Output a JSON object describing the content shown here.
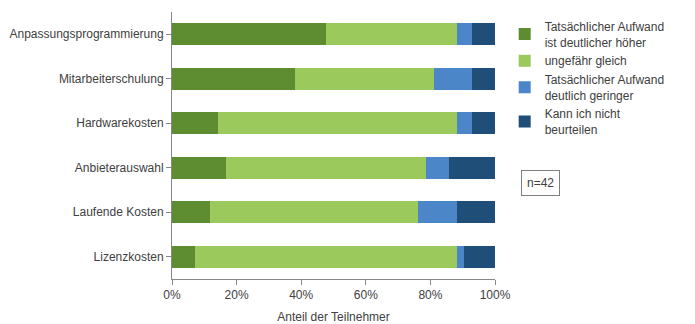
{
  "chart_data": {
    "type": "bar",
    "orientation": "horizontal",
    "stacked": true,
    "grid": false,
    "legend": "right",
    "x_label": "Anteil der Teilnehmer",
    "annotation": "n=42",
    "categories": [
      "Anpassungsprogrammierung",
      "Mitarbeiterschulung",
      "Hardwarekosten",
      "Anbieterauswahl",
      "Laufende Kosten",
      "Lizenzkosten"
    ],
    "series": [
      {
        "name": "Tatsächlicher Aufwand ist deutlicher höher",
        "color": "#5e8c31",
        "values": [
          47.6,
          38.1,
          14.3,
          16.7,
          11.9,
          7.1
        ]
      },
      {
        "name": "ungefähr gleich",
        "color": "#9bc95b",
        "values": [
          40.5,
          42.9,
          73.8,
          61.9,
          64.3,
          81.0
        ]
      },
      {
        "name": "Tatsächlicher Aufwand deutlich geringer",
        "color": "#4a86c8",
        "values": [
          4.8,
          11.9,
          4.8,
          7.1,
          11.9,
          2.4
        ]
      },
      {
        "name": "Kann ich nicht beurteilen",
        "color": "#1f4e79",
        "values": [
          7.1,
          7.1,
          7.1,
          14.3,
          11.9,
          9.5
        ]
      }
    ],
    "xlim": [
      0,
      100
    ],
    "xticks": [
      {
        "value": 0,
        "label": "0%"
      },
      {
        "value": 20,
        "label": "20%"
      },
      {
        "value": 40,
        "label": "40%"
      },
      {
        "value": 60,
        "label": "60%"
      },
      {
        "value": 80,
        "label": "80%"
      },
      {
        "value": 100,
        "label": "100%"
      }
    ]
  }
}
